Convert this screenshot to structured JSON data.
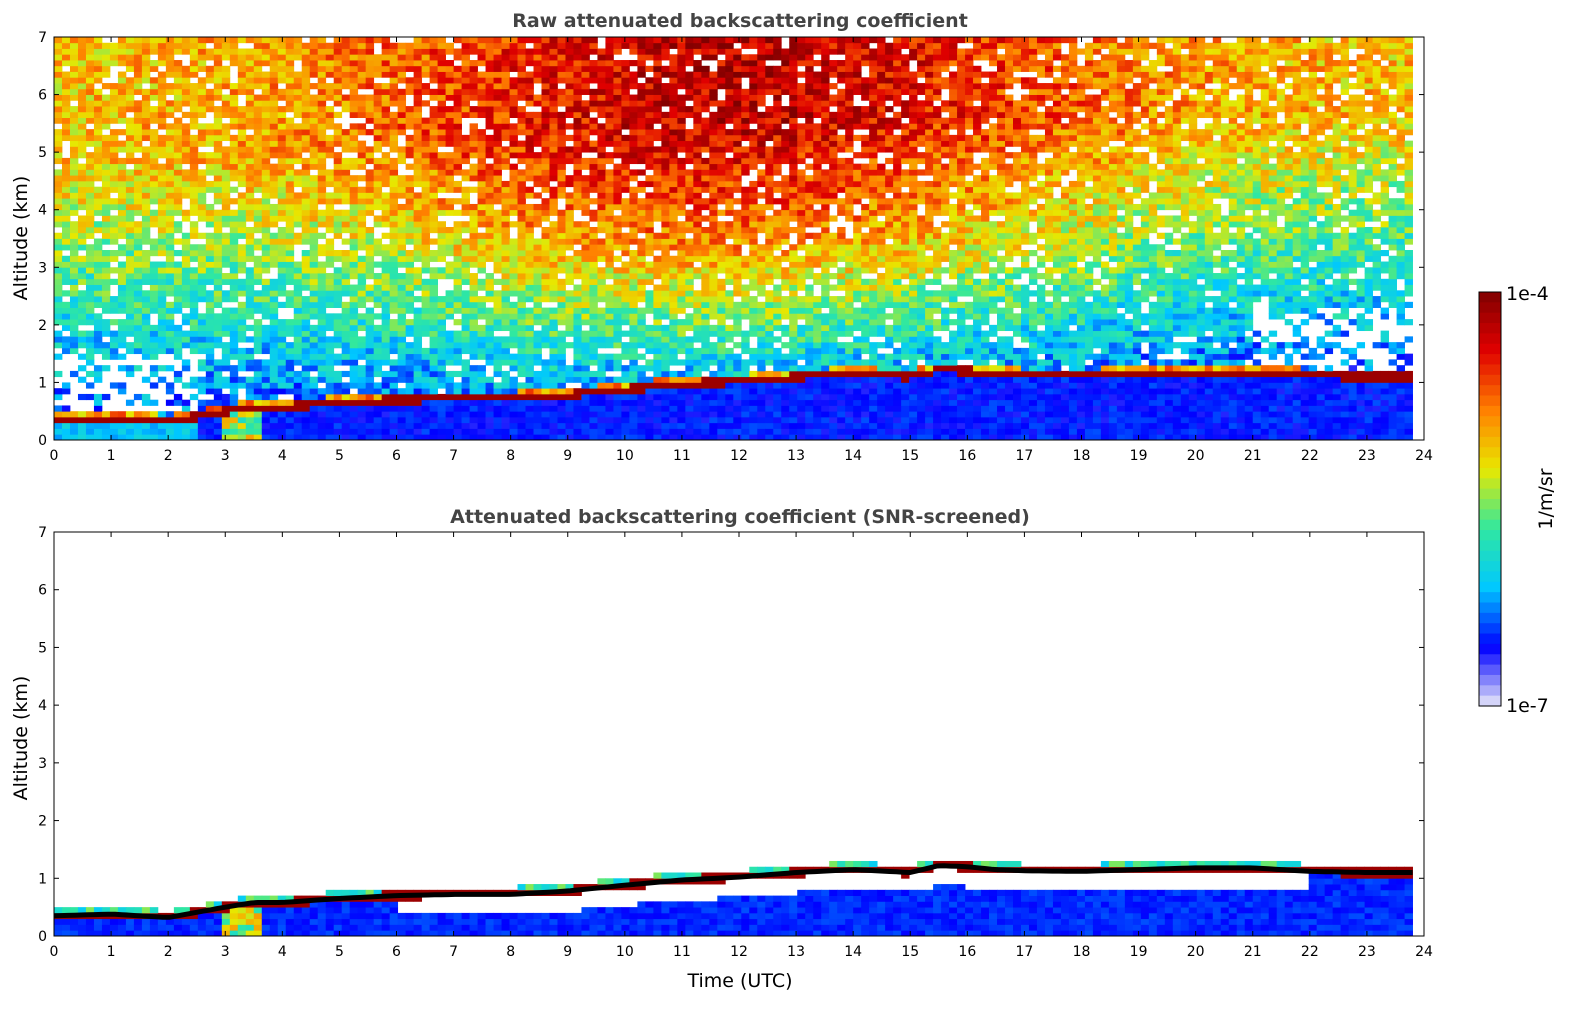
{
  "chart_data": [
    {
      "type": "heatmap",
      "title": "Raw attenuated backscattering coefficient",
      "xlabel": "",
      "ylabel": "Altitude (km)",
      "xlim": [
        0,
        24
      ],
      "ylim": [
        0,
        7
      ],
      "xticks": [
        "0",
        "1",
        "2",
        "3",
        "4",
        "5",
        "6",
        "7",
        "8",
        "9",
        "10",
        "11",
        "12",
        "13",
        "14",
        "15",
        "16",
        "17",
        "18",
        "19",
        "20",
        "21",
        "22",
        "23",
        "24"
      ],
      "yticks": [
        "0",
        "1",
        "2",
        "3",
        "4",
        "5",
        "6",
        "7"
      ],
      "data_end_time": 23.8,
      "boundary_layer_top_km": {
        "time": [
          0,
          1,
          2,
          3,
          3.5,
          4,
          5,
          6,
          7,
          8,
          9,
          10,
          11,
          12,
          13,
          14,
          15,
          15.5,
          16,
          16.5,
          17,
          18,
          19,
          20,
          21,
          22,
          23,
          23.8
        ],
        "altitude": [
          0.35,
          0.38,
          0.32,
          0.5,
          0.58,
          0.58,
          0.65,
          0.7,
          0.72,
          0.72,
          0.78,
          0.88,
          0.97,
          1.02,
          1.1,
          1.15,
          1.1,
          1.22,
          1.2,
          1.15,
          1.13,
          1.12,
          1.15,
          1.18,
          1.18,
          1.12,
          1.1,
          1.1
        ]
      }
    },
    {
      "type": "heatmap",
      "title": "Attenuated backscattering coefficient (SNR-screened)",
      "xlabel": "Time (UTC)",
      "ylabel": "Altitude (km)",
      "xlim": [
        0,
        24
      ],
      "ylim": [
        0,
        7
      ],
      "xticks": [
        "0",
        "1",
        "2",
        "3",
        "4",
        "5",
        "6",
        "7",
        "8",
        "9",
        "10",
        "11",
        "12",
        "13",
        "14",
        "15",
        "16",
        "17",
        "18",
        "19",
        "20",
        "21",
        "22",
        "23",
        "24"
      ],
      "yticks": [
        "0",
        "1",
        "2",
        "3",
        "4",
        "5",
        "6",
        "7"
      ],
      "data_end_time": 23.8,
      "boundary_layer_top_km": {
        "time": [
          0,
          1,
          2,
          3,
          3.5,
          4,
          5,
          6,
          7,
          8,
          9,
          10,
          11,
          12,
          13,
          14,
          15,
          15.5,
          16,
          16.5,
          17,
          18,
          19,
          20,
          21,
          22,
          23,
          23.8
        ],
        "altitude": [
          0.35,
          0.38,
          0.32,
          0.5,
          0.58,
          0.58,
          0.65,
          0.7,
          0.72,
          0.72,
          0.78,
          0.88,
          0.97,
          1.02,
          1.1,
          1.15,
          1.1,
          1.22,
          1.2,
          1.15,
          1.13,
          1.12,
          1.15,
          1.18,
          1.18,
          1.12,
          1.1,
          1.1
        ]
      }
    }
  ],
  "colorbar": {
    "label": "1/m/sr",
    "max_label": "1e-4",
    "min_label": "1e-7",
    "scale": "log",
    "colormap": "jet",
    "colors": [
      "#e8e8f8",
      "#0000ff",
      "#00c8ff",
      "#30e8a0",
      "#e8e800",
      "#ff8000",
      "#e00000",
      "#800000"
    ]
  }
}
